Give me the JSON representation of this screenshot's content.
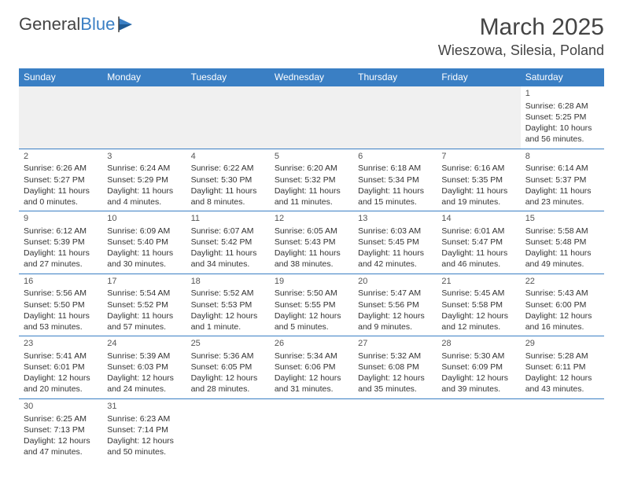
{
  "logo": {
    "part1": "General",
    "part2": "Blue"
  },
  "title": "March 2025",
  "location": "Wieszowa, Silesia, Poland",
  "header_bg": "#3a7fc4",
  "header_fg": "#ffffff",
  "border_color": "#3a7fc4",
  "blank_bg": "#f0f0f0",
  "text_color": "#333333",
  "day_headers": [
    "Sunday",
    "Monday",
    "Tuesday",
    "Wednesday",
    "Thursday",
    "Friday",
    "Saturday"
  ],
  "weeks": [
    [
      null,
      null,
      null,
      null,
      null,
      null,
      {
        "n": "1",
        "sr": "Sunrise: 6:28 AM",
        "ss": "Sunset: 5:25 PM",
        "dl": "Daylight: 10 hours and 56 minutes."
      }
    ],
    [
      {
        "n": "2",
        "sr": "Sunrise: 6:26 AM",
        "ss": "Sunset: 5:27 PM",
        "dl": "Daylight: 11 hours and 0 minutes."
      },
      {
        "n": "3",
        "sr": "Sunrise: 6:24 AM",
        "ss": "Sunset: 5:29 PM",
        "dl": "Daylight: 11 hours and 4 minutes."
      },
      {
        "n": "4",
        "sr": "Sunrise: 6:22 AM",
        "ss": "Sunset: 5:30 PM",
        "dl": "Daylight: 11 hours and 8 minutes."
      },
      {
        "n": "5",
        "sr": "Sunrise: 6:20 AM",
        "ss": "Sunset: 5:32 PM",
        "dl": "Daylight: 11 hours and 11 minutes."
      },
      {
        "n": "6",
        "sr": "Sunrise: 6:18 AM",
        "ss": "Sunset: 5:34 PM",
        "dl": "Daylight: 11 hours and 15 minutes."
      },
      {
        "n": "7",
        "sr": "Sunrise: 6:16 AM",
        "ss": "Sunset: 5:35 PM",
        "dl": "Daylight: 11 hours and 19 minutes."
      },
      {
        "n": "8",
        "sr": "Sunrise: 6:14 AM",
        "ss": "Sunset: 5:37 PM",
        "dl": "Daylight: 11 hours and 23 minutes."
      }
    ],
    [
      {
        "n": "9",
        "sr": "Sunrise: 6:12 AM",
        "ss": "Sunset: 5:39 PM",
        "dl": "Daylight: 11 hours and 27 minutes."
      },
      {
        "n": "10",
        "sr": "Sunrise: 6:09 AM",
        "ss": "Sunset: 5:40 PM",
        "dl": "Daylight: 11 hours and 30 minutes."
      },
      {
        "n": "11",
        "sr": "Sunrise: 6:07 AM",
        "ss": "Sunset: 5:42 PM",
        "dl": "Daylight: 11 hours and 34 minutes."
      },
      {
        "n": "12",
        "sr": "Sunrise: 6:05 AM",
        "ss": "Sunset: 5:43 PM",
        "dl": "Daylight: 11 hours and 38 minutes."
      },
      {
        "n": "13",
        "sr": "Sunrise: 6:03 AM",
        "ss": "Sunset: 5:45 PM",
        "dl": "Daylight: 11 hours and 42 minutes."
      },
      {
        "n": "14",
        "sr": "Sunrise: 6:01 AM",
        "ss": "Sunset: 5:47 PM",
        "dl": "Daylight: 11 hours and 46 minutes."
      },
      {
        "n": "15",
        "sr": "Sunrise: 5:58 AM",
        "ss": "Sunset: 5:48 PM",
        "dl": "Daylight: 11 hours and 49 minutes."
      }
    ],
    [
      {
        "n": "16",
        "sr": "Sunrise: 5:56 AM",
        "ss": "Sunset: 5:50 PM",
        "dl": "Daylight: 11 hours and 53 minutes."
      },
      {
        "n": "17",
        "sr": "Sunrise: 5:54 AM",
        "ss": "Sunset: 5:52 PM",
        "dl": "Daylight: 11 hours and 57 minutes."
      },
      {
        "n": "18",
        "sr": "Sunrise: 5:52 AM",
        "ss": "Sunset: 5:53 PM",
        "dl": "Daylight: 12 hours and 1 minute."
      },
      {
        "n": "19",
        "sr": "Sunrise: 5:50 AM",
        "ss": "Sunset: 5:55 PM",
        "dl": "Daylight: 12 hours and 5 minutes."
      },
      {
        "n": "20",
        "sr": "Sunrise: 5:47 AM",
        "ss": "Sunset: 5:56 PM",
        "dl": "Daylight: 12 hours and 9 minutes."
      },
      {
        "n": "21",
        "sr": "Sunrise: 5:45 AM",
        "ss": "Sunset: 5:58 PM",
        "dl": "Daylight: 12 hours and 12 minutes."
      },
      {
        "n": "22",
        "sr": "Sunrise: 5:43 AM",
        "ss": "Sunset: 6:00 PM",
        "dl": "Daylight: 12 hours and 16 minutes."
      }
    ],
    [
      {
        "n": "23",
        "sr": "Sunrise: 5:41 AM",
        "ss": "Sunset: 6:01 PM",
        "dl": "Daylight: 12 hours and 20 minutes."
      },
      {
        "n": "24",
        "sr": "Sunrise: 5:39 AM",
        "ss": "Sunset: 6:03 PM",
        "dl": "Daylight: 12 hours and 24 minutes."
      },
      {
        "n": "25",
        "sr": "Sunrise: 5:36 AM",
        "ss": "Sunset: 6:05 PM",
        "dl": "Daylight: 12 hours and 28 minutes."
      },
      {
        "n": "26",
        "sr": "Sunrise: 5:34 AM",
        "ss": "Sunset: 6:06 PM",
        "dl": "Daylight: 12 hours and 31 minutes."
      },
      {
        "n": "27",
        "sr": "Sunrise: 5:32 AM",
        "ss": "Sunset: 6:08 PM",
        "dl": "Daylight: 12 hours and 35 minutes."
      },
      {
        "n": "28",
        "sr": "Sunrise: 5:30 AM",
        "ss": "Sunset: 6:09 PM",
        "dl": "Daylight: 12 hours and 39 minutes."
      },
      {
        "n": "29",
        "sr": "Sunrise: 5:28 AM",
        "ss": "Sunset: 6:11 PM",
        "dl": "Daylight: 12 hours and 43 minutes."
      }
    ],
    [
      {
        "n": "30",
        "sr": "Sunrise: 6:25 AM",
        "ss": "Sunset: 7:13 PM",
        "dl": "Daylight: 12 hours and 47 minutes."
      },
      {
        "n": "31",
        "sr": "Sunrise: 6:23 AM",
        "ss": "Sunset: 7:14 PM",
        "dl": "Daylight: 12 hours and 50 minutes."
      },
      null,
      null,
      null,
      null,
      null
    ]
  ]
}
